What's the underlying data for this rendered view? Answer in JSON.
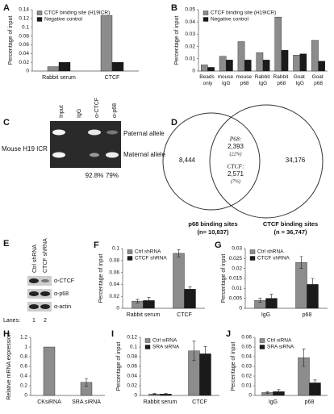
{
  "chart_data": [
    {
      "panel": "A",
      "type": "bar",
      "ylabel": "Percentage of input",
      "categories": [
        "Rabbit serum",
        "CTCF"
      ],
      "series": [
        {
          "name": "CTCF binding site (H19ICR)",
          "color": "#8c8c8c",
          "values": [
            0.01,
            0.127
          ]
        },
        {
          "name": "Negative control",
          "color": "#1a1a1a",
          "values": [
            0.02,
            0.02
          ]
        }
      ],
      "ylim": [
        0,
        0.14
      ],
      "yticks": [
        0,
        0.02,
        0.04,
        0.06,
        0.08,
        0.1,
        0.12,
        0.14
      ],
      "legend": "upper left"
    },
    {
      "panel": "B",
      "type": "bar",
      "ylabel": "Percentage of input",
      "categories": [
        "Beads only",
        "mouse IgG",
        "mouse p68",
        "Rabbit IgG",
        "Rabbit p68",
        "Goat IgG",
        "Goat p68"
      ],
      "series": [
        {
          "name": "CTCF binding site (H19ICR)",
          "color": "#8c8c8c",
          "values": [
            0.005,
            0.012,
            0.024,
            0.015,
            0.044,
            0.013,
            0.025
          ]
        },
        {
          "name": "Negative control",
          "color": "#1a1a1a",
          "values": [
            0.003,
            0.009,
            0.009,
            0.009,
            0.017,
            0.014,
            0.008
          ]
        }
      ],
      "ylim": [
        0,
        0.05
      ],
      "yticks": [
        0,
        0.01,
        0.02,
        0.03,
        0.04,
        0.05
      ],
      "legend": "upper left"
    },
    {
      "panel": "F",
      "type": "bar",
      "ylabel": "Percentage of input",
      "categories": [
        "Rabbit serum",
        "CTCF"
      ],
      "series": [
        {
          "name": "Ctrl shRNA",
          "color": "#8c8c8c",
          "values": [
            0.012,
            0.092
          ],
          "errors": [
            0.003,
            0.006
          ]
        },
        {
          "name": "CTCF shRNA",
          "color": "#1a1a1a",
          "values": [
            0.013,
            0.032
          ],
          "errors": [
            0.005,
            0.004
          ]
        }
      ],
      "ylim": [
        0,
        0.1
      ],
      "yticks": [
        0,
        0.02,
        0.04,
        0.06,
        0.08,
        0.1
      ],
      "legend": "upper left"
    },
    {
      "panel": "G",
      "type": "bar",
      "ylabel": "Percentage of input",
      "categories": [
        "IgG",
        "p68"
      ],
      "series": [
        {
          "name": "Ctrl shRNA",
          "color": "#8c8c8c",
          "values": [
            0.004,
            0.023
          ],
          "errors": [
            0.001,
            0.003
          ]
        },
        {
          "name": "CTCF shRNA",
          "color": "#1a1a1a",
          "values": [
            0.005,
            0.012
          ],
          "errors": [
            0.002,
            0.003
          ]
        }
      ],
      "ylim": [
        0,
        0.03
      ],
      "yticks": [
        0,
        0.005,
        0.01,
        0.015,
        0.02,
        0.025,
        0.03
      ],
      "legend": "upper left"
    },
    {
      "panel": "H",
      "type": "bar",
      "ylabel": "Relative mRNA expression",
      "categories": [
        "CKsiRNA",
        "SRA siRNA"
      ],
      "values": [
        1,
        0.27
      ],
      "errors": [
        null,
        0.08
      ],
      "color": "#8c8c8c",
      "ylim": [
        0,
        1.2
      ],
      "yticks": [
        0,
        0.2,
        0.4,
        0.6,
        0.8,
        1,
        1.2
      ]
    },
    {
      "panel": "I",
      "type": "bar",
      "ylabel": "Percentage of input",
      "categories": [
        "Rabbit serum",
        "CTCF"
      ],
      "series": [
        {
          "name": "Ctrl siRNA",
          "color": "#8c8c8c",
          "values": [
            0.003,
            0.092
          ],
          "errors": [
            0.001,
            0.02
          ]
        },
        {
          "name": "SRA siRNA",
          "color": "#1a1a1a",
          "values": [
            0.003,
            0.086
          ],
          "errors": [
            0.001,
            0.015
          ]
        }
      ],
      "ylim": [
        0,
        0.12
      ],
      "yticks": [
        0,
        0.02,
        0.04,
        0.06,
        0.08,
        0.1,
        0.12
      ],
      "legend": "upper left"
    },
    {
      "panel": "J",
      "type": "bar",
      "ylabel": "Percentage of input",
      "categories": [
        "IgG",
        "p68"
      ],
      "series": [
        {
          "name": "Ctrl siRNA",
          "color": "#8c8c8c",
          "values": [
            0.003,
            0.039
          ],
          "errors": [
            0.001,
            0.009
          ]
        },
        {
          "name": "SRA siRNA",
          "color": "#1a1a1a",
          "values": [
            0.004,
            0.013
          ],
          "errors": [
            0.002,
            0.003
          ]
        }
      ],
      "ylim": [
        0,
        0.06
      ],
      "yticks": [
        0,
        0.01,
        0.02,
        0.03,
        0.04,
        0.05,
        0.06
      ],
      "legend": "upper left"
    }
  ],
  "gel": {
    "panel": "C",
    "lanes": [
      "Input",
      "IgG",
      "α-CTCF",
      "α-p68"
    ],
    "region": "Mouse H19 ICR",
    "alleles": [
      "Paternal allele",
      "Maternal allele"
    ],
    "percentages": [
      "92.8%",
      "79%"
    ]
  },
  "venn": {
    "panel": "D",
    "left_only": "8,444",
    "overlap_p68": {
      "label": "P68:",
      "count": "2,393",
      "percent": "(22%)"
    },
    "overlap_ctcf": {
      "label": "CTCF:",
      "count": "2,571",
      "percent": "(7%)"
    },
    "right_only": "34,176",
    "left_label": "p68 binding sites",
    "left_n": "(n= 10,837)",
    "right_label": "CTCF binding sites",
    "right_n": "(n = 36,747)"
  },
  "blot": {
    "panel": "E",
    "lanes": [
      "Ctrl shRNA",
      "CTCF shRNA"
    ],
    "antibodies": [
      "α-CTCF",
      "α-p68",
      "α-actin"
    ],
    "lanes_label": "Lanes:",
    "lane_numbers": [
      "1",
      "2"
    ]
  }
}
